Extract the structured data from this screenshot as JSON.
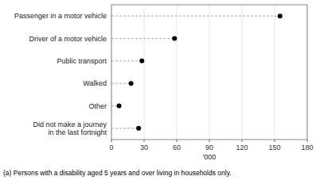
{
  "chart_data": {
    "type": "lollipop",
    "orientation": "horizontal",
    "categories": [
      "Passenger in a motor vehicle",
      "Driver of a motor vehicle",
      "Public transport",
      "Walked",
      "Other",
      "Did not make a journey\nin the last fortnight"
    ],
    "values": [
      155,
      58,
      28,
      18,
      7,
      25
    ],
    "color": "#000000",
    "xlabel": "'000",
    "xlim": [
      0,
      180
    ],
    "xticks": [
      0,
      30,
      60,
      90,
      120,
      150,
      180
    ],
    "footnote": "(a) Persons with a disability aged 5 years and over living in households only."
  }
}
